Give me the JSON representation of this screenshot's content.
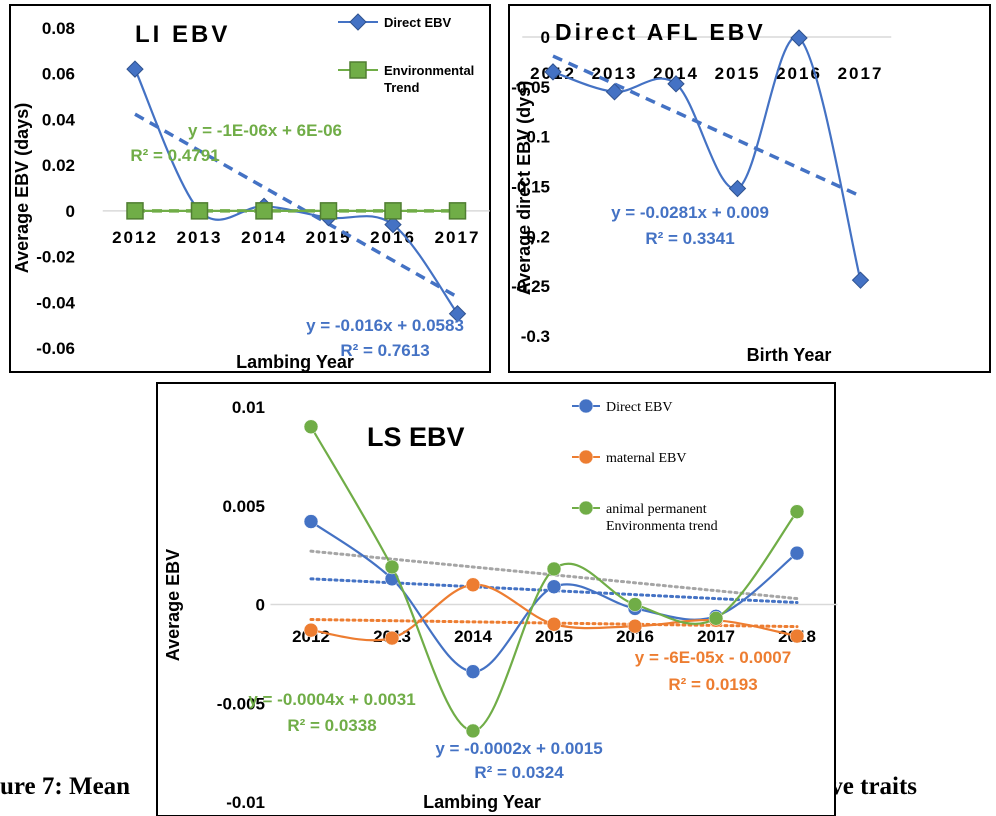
{
  "caption": {
    "left": "ure 7: Mean",
    "right": "uctive traits"
  },
  "chart_data": [
    {
      "id": "li",
      "type": "line",
      "title": "LI EBV",
      "xlabel": "Lambing Year",
      "ylabel": "Average  EBV (days)",
      "categories": [
        "2012",
        "2013",
        "2014",
        "2015",
        "2016",
        "2017"
      ],
      "ylim": [
        -0.06,
        0.08
      ],
      "yticks": [
        0.08,
        0.06,
        0.04,
        0.02,
        0,
        -0.02,
        -0.04,
        -0.06
      ],
      "ytick_labels": [
        "0.08",
        "0.06",
        "0.04",
        "0.02",
        "0",
        "-0.02",
        "-0.04",
        "-0.06"
      ],
      "series": [
        {
          "name": "Direct EBV",
          "color": "#4472c4",
          "marker": "diamond",
          "values": [
            0.062,
            0.0,
            0.002,
            -0.003,
            -0.006,
            -0.045
          ]
        },
        {
          "name": "Environmental Trend",
          "color": "#70ad47",
          "marker": "square",
          "values": [
            0,
            0,
            0,
            0,
            0,
            0
          ]
        }
      ],
      "trendlines": [
        {
          "color": "#4472c4",
          "slope": -0.016,
          "intercept": 0.0583,
          "equation": "y = -0.016x + 0.0583",
          "r2": "R² = 0.7613"
        },
        {
          "color": "#70ad47",
          "slope": -1e-06,
          "intercept": 6e-06,
          "equation": "y = -1E-06x + 6E-06",
          "r2": "R² = 0.4791"
        }
      ]
    },
    {
      "id": "afl",
      "type": "line",
      "title": "Direct AFL EBV",
      "xlabel": "Birth Year",
      "ylabel": "Average direct EBV (dys)",
      "categories": [
        "2012",
        "2013",
        "2014",
        "2015",
        "2016",
        "2017"
      ],
      "ylim": [
        -0.3,
        0
      ],
      "yticks": [
        0,
        -0.05,
        -0.1,
        -0.15,
        -0.2,
        -0.25,
        -0.3
      ],
      "ytick_labels": [
        "0",
        "-0.05",
        "-0.1",
        "-0.15",
        "-0.2",
        "-0.25",
        "-0.3"
      ],
      "series": [
        {
          "name": "Direct EBV",
          "color": "#4472c4",
          "marker": "diamond",
          "values": [
            -0.035,
            -0.055,
            -0.047,
            -0.152,
            -0.001,
            -0.244
          ]
        }
      ],
      "trendlines": [
        {
          "color": "#4472c4",
          "slope": -0.0281,
          "intercept": 0.009,
          "equation": "y = -0.0281x + 0.009",
          "r2": "R² = 0.3341"
        }
      ]
    },
    {
      "id": "ls",
      "type": "line",
      "title": "LS EBV",
      "xlabel": "Lambing Year",
      "ylabel": "Average EBV",
      "categories": [
        "2012",
        "2013",
        "2014",
        "2015",
        "2016",
        "2017",
        "2018"
      ],
      "ylim": [
        -0.01,
        0.01
      ],
      "yticks": [
        0.01,
        0.005,
        0,
        -0.005,
        -0.01
      ],
      "ytick_labels": [
        "0.01",
        "0.005",
        "0",
        "-0.005",
        "-0.01"
      ],
      "series": [
        {
          "name": "Direct EBV",
          "color": "#4472c4",
          "marker": "circle",
          "values": [
            0.0042,
            0.0013,
            -0.0034,
            0.0009,
            -0.0002,
            -0.0006,
            0.0026
          ]
        },
        {
          "name": "maternal EBV",
          "color": "#ed7d31",
          "marker": "circle",
          "values": [
            -0.0013,
            -0.0017,
            0.001,
            -0.001,
            -0.0011,
            -0.0008,
            -0.0016
          ]
        },
        {
          "name": "animal permanent Environmenta trend",
          "color": "#70ad47",
          "marker": "circle",
          "values": [
            0.009,
            0.0019,
            -0.0064,
            0.0018,
            0.0,
            -0.0007,
            0.0047
          ]
        }
      ],
      "trendlines": [
        {
          "color": "#4472c4",
          "slope": -0.0002,
          "intercept": 0.0015,
          "equation": "y = -0.0002x + 0.0015",
          "r2": "R² = 0.0324"
        },
        {
          "color": "#ed7d31",
          "slope": -6e-05,
          "intercept": -0.0007,
          "equation": "y = -6E-05x - 0.0007",
          "r2": "R² = 0.0193"
        },
        {
          "color": "#a5a5a5",
          "slope": -0.0004,
          "intercept": 0.0031,
          "equation": "y = -0.0004x + 0.0031",
          "r2": "R² = 0.0338"
        }
      ]
    }
  ]
}
